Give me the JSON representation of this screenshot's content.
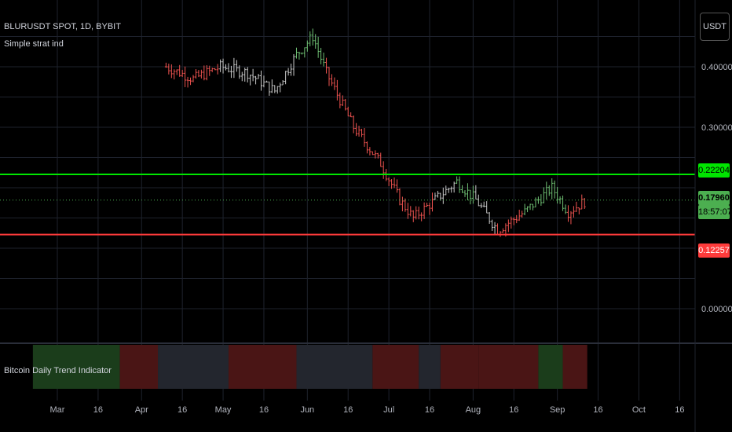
{
  "legend": {
    "symbol_line": "BLURUSDT SPOT, 1D, BYBIT",
    "indicator_line": "Simple strat ind"
  },
  "price_axis": {
    "unit_button": "USDT",
    "ticks": [
      "0.40000",
      "0.30000",
      "0.00000"
    ],
    "badges": {
      "resistance": "0.22204",
      "last_price": "0.17960",
      "countdown": "18:57:07",
      "support": "0.12257"
    }
  },
  "time_axis": {
    "labels": [
      "Mar",
      "16",
      "Apr",
      "16",
      "May",
      "16",
      "Jun",
      "16",
      "Jul",
      "16",
      "Aug",
      "16",
      "Sep",
      "16",
      "Oct",
      "16"
    ]
  },
  "indicator_pane": {
    "title": "Bitcoin Daily Trend Indicator"
  },
  "colors": {
    "background": "#000000",
    "grid": "#1e222d",
    "bull": "#6fbf73",
    "bear": "#ef5350",
    "neutral": "#c8c8c8",
    "resistance_line": "#00e600",
    "support_line": "#ff3b3b",
    "last_price_line": "#4caf50"
  },
  "chart_data": {
    "type": "ohlc",
    "title": "BLURUSDT SPOT, 1D, BYBIT",
    "yticks": [
      0.4,
      0.3,
      0.0
    ],
    "horizontal_lines": [
      {
        "label": "0.22204",
        "value": 0.22204,
        "color": "#00e600"
      },
      {
        "label": "0.17960",
        "value": 0.1796,
        "color": "#4caf50",
        "style": "dotted"
      },
      {
        "label": "0.12257",
        "value": 0.12257,
        "color": "#ff3b3b"
      }
    ],
    "close_anchors": [
      [
        "2023-04-10",
        0.4,
        "red"
      ],
      [
        "2023-04-20",
        0.38,
        "red"
      ],
      [
        "2023-04-30",
        0.4,
        "neutral"
      ],
      [
        "2023-05-10",
        0.39,
        "neutral"
      ],
      [
        "2023-05-20",
        0.36,
        "neutral"
      ],
      [
        "2023-05-28",
        0.42,
        "green"
      ],
      [
        "2023-06-03",
        0.45,
        "green"
      ],
      [
        "2023-06-08",
        0.39,
        "red"
      ],
      [
        "2023-06-18",
        0.3,
        "red"
      ],
      [
        "2023-06-28",
        0.24,
        "red"
      ],
      [
        "2023-07-05",
        0.18,
        "red"
      ],
      [
        "2023-07-10",
        0.15,
        "red"
      ],
      [
        "2023-07-18",
        0.18,
        "neutral"
      ],
      [
        "2023-07-26",
        0.21,
        "green"
      ],
      [
        "2023-08-02",
        0.18,
        "neutral"
      ],
      [
        "2023-08-10",
        0.13,
        "red"
      ],
      [
        "2023-08-20",
        0.16,
        "green"
      ],
      [
        "2023-08-30",
        0.2,
        "green"
      ],
      [
        "2023-09-05",
        0.16,
        "red"
      ],
      [
        "2023-09-12",
        0.18,
        "green"
      ]
    ],
    "trend_segments": [
      {
        "from": "2023-02-20",
        "to": "2023-03-24",
        "trend": "bullish"
      },
      {
        "from": "2023-03-24",
        "to": "2023-04-07",
        "trend": "bearish"
      },
      {
        "from": "2023-04-07",
        "to": "2023-05-03",
        "trend": "neutral"
      },
      {
        "from": "2023-05-03",
        "to": "2023-05-28",
        "trend": "bearish"
      },
      {
        "from": "2023-05-28",
        "to": "2023-06-25",
        "trend": "neutral"
      },
      {
        "from": "2023-06-25",
        "to": "2023-07-12",
        "trend": "bearish"
      },
      {
        "from": "2023-07-12",
        "to": "2023-07-20",
        "trend": "neutral"
      },
      {
        "from": "2023-07-20",
        "to": "2023-08-03",
        "trend": "bearish"
      },
      {
        "from": "2023-08-03",
        "to": "2023-08-25",
        "trend": "bearish"
      },
      {
        "from": "2023-08-25",
        "to": "2023-09-03",
        "trend": "bullish"
      },
      {
        "from": "2023-09-03",
        "to": "2023-09-12",
        "trend": "bearish"
      }
    ]
  }
}
